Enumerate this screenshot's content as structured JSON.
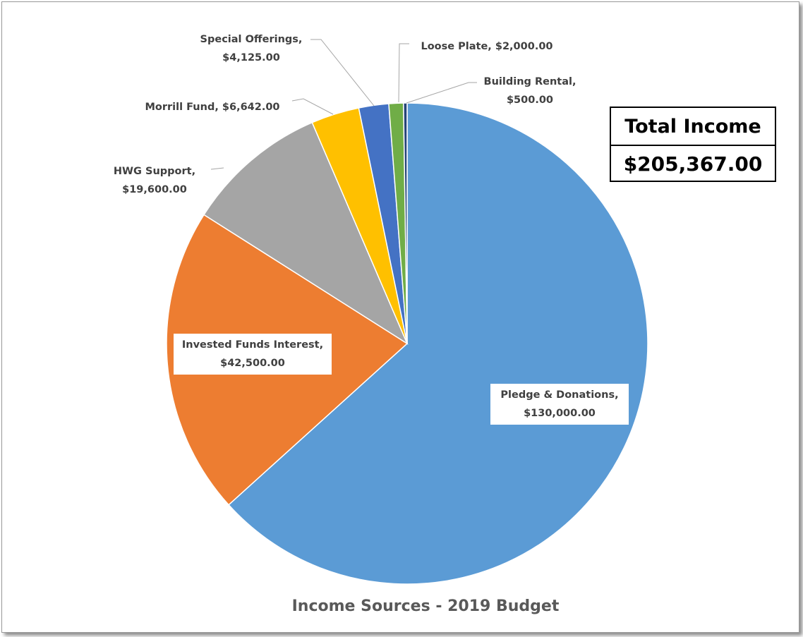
{
  "chart_data": {
    "type": "pie",
    "title": "Income Sources - 2019 Budget",
    "slices": [
      {
        "label": "Pledge & Donations,",
        "value_label": "$130,000.00",
        "value": 130000,
        "color": "#5b9bd5"
      },
      {
        "label": "Invested Funds Interest,",
        "value_label": "$42,500.00",
        "value": 42500,
        "color": "#ed7d31"
      },
      {
        "label": "HWG Support,",
        "value_label": "$19,600.00",
        "value": 19600,
        "color": "#a5a5a5"
      },
      {
        "label": "Morrill Fund,",
        "value_label": "$6,642.00",
        "value": 6642,
        "color": "#ffc000"
      },
      {
        "label": "Special Offerings,",
        "value_label": "$4,125.00",
        "value": 4125,
        "color": "#4472c4"
      },
      {
        "label": "Loose Plate,",
        "value_label": "$2,000.00",
        "value": 2000,
        "color": "#70ad47"
      },
      {
        "label": "Building Rental,",
        "value_label": "$500.00",
        "value": 500,
        "color": "#264478"
      }
    ]
  },
  "total_box": {
    "heading": "Total Income",
    "value": "$205,367.00"
  }
}
